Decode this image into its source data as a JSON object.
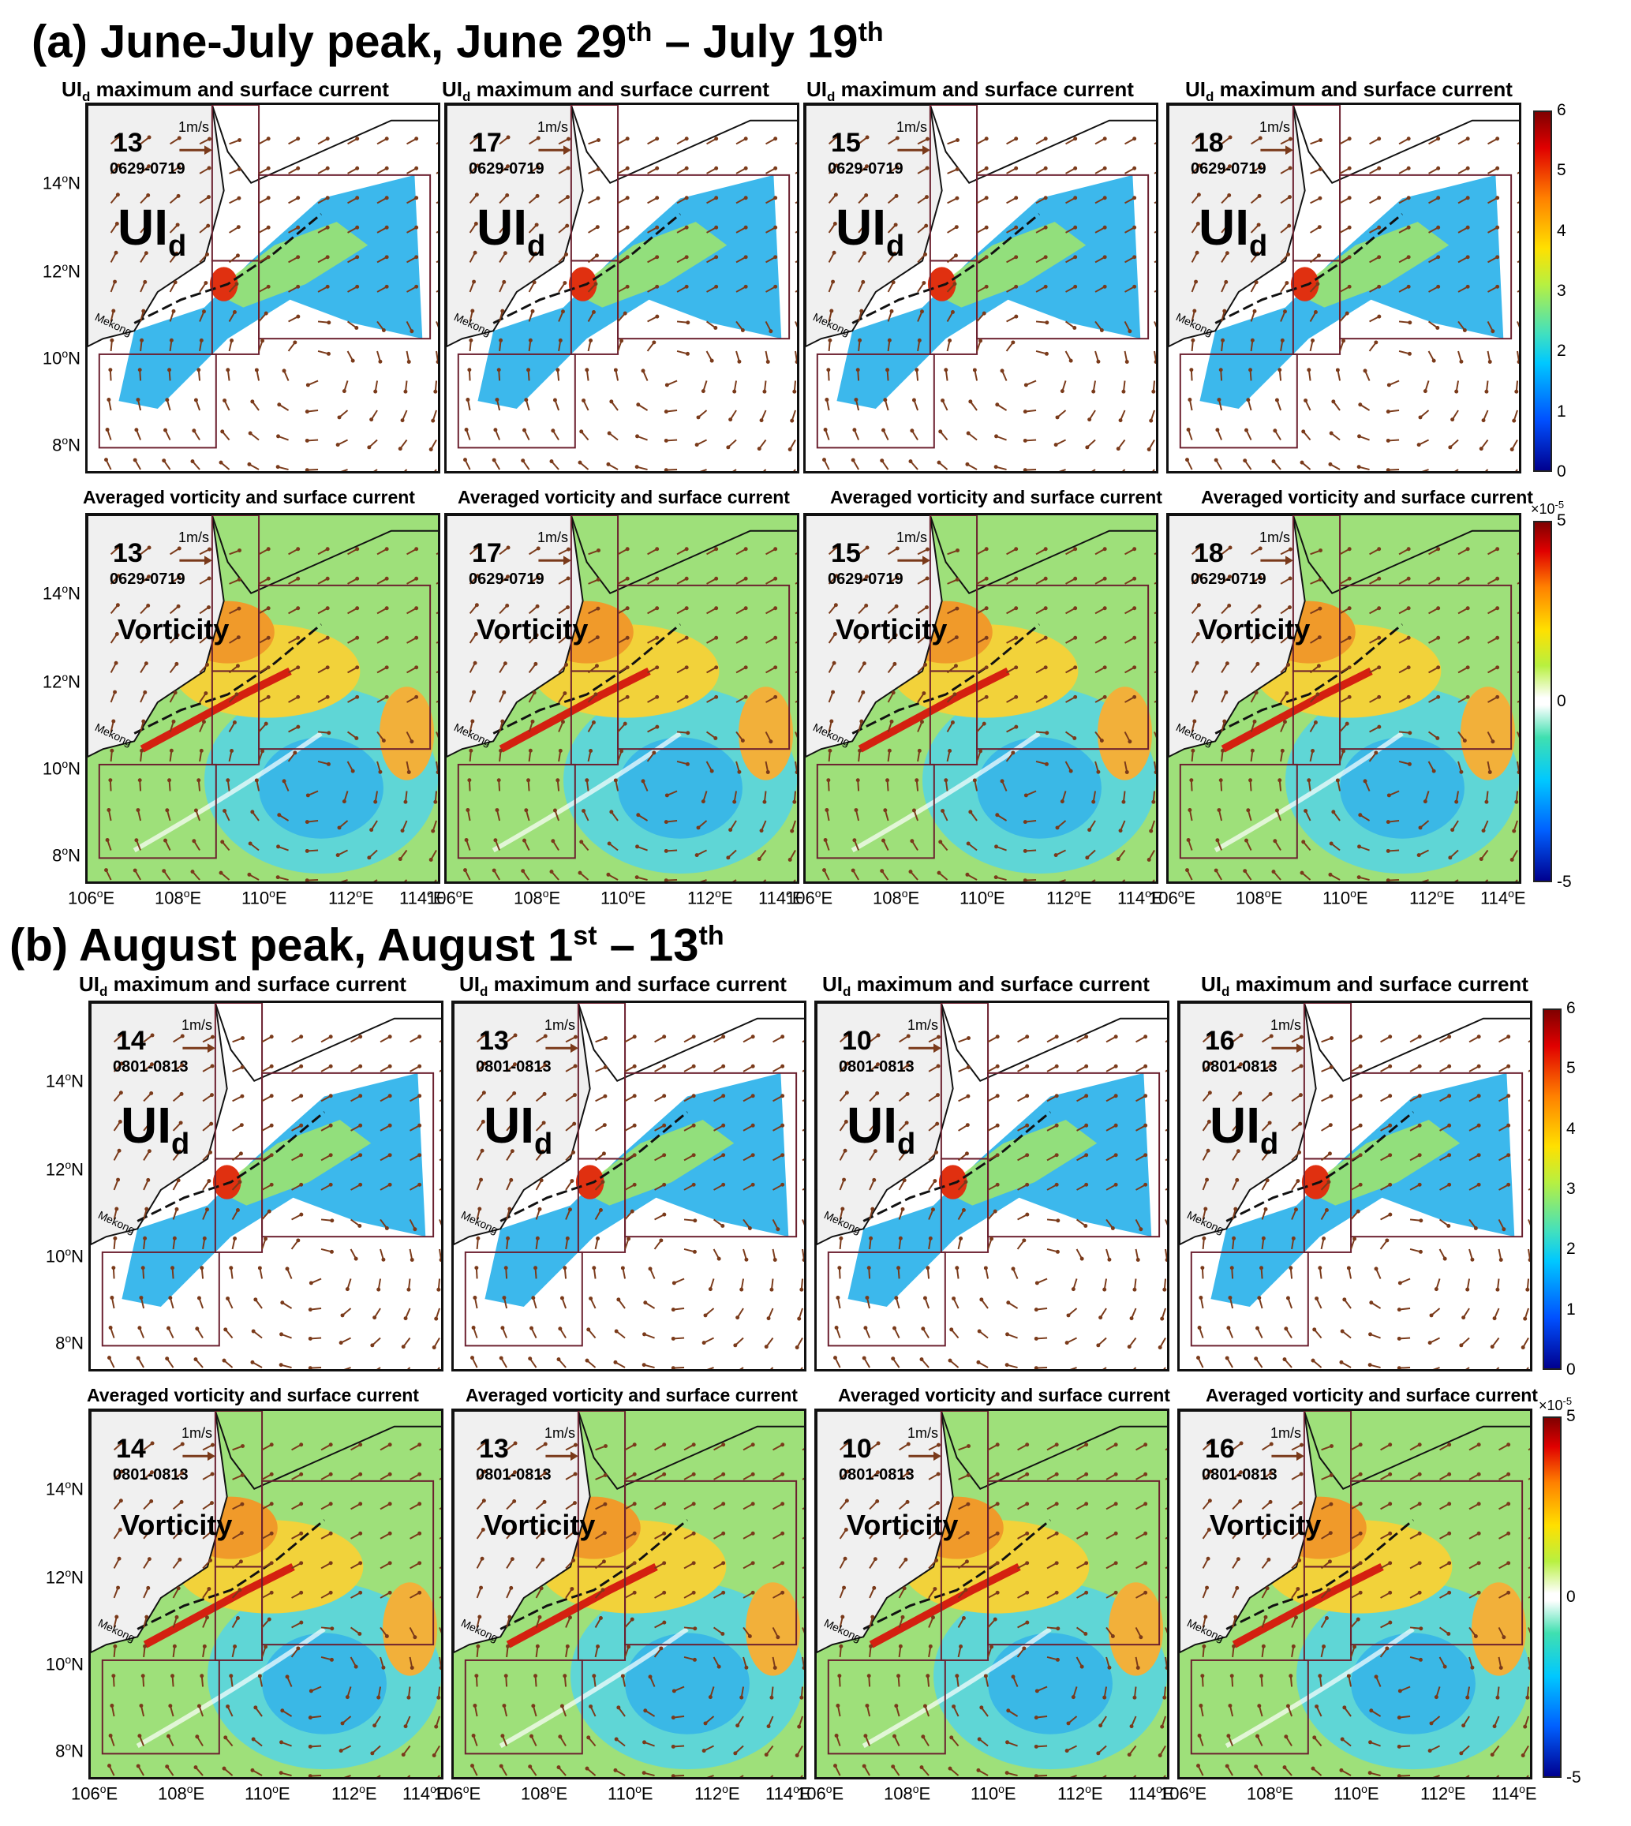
{
  "sections": [
    {
      "title_prefix": "(a) June-July peak, June 29",
      "title_sup1": "th",
      "title_mid": " – July 19",
      "title_sup2": "th",
      "uid_row_title_pre": "UI",
      "uid_row_title_sub": "d",
      "uid_row_title_post": " maximum and surface current",
      "vort_row_title": "Averaged vorticity and surface current",
      "date_code": "0629-0719",
      "panel_numbers": [
        "13",
        "17",
        "15",
        "18"
      ]
    },
    {
      "title_prefix": "(b) August peak, August 1",
      "title_sup1": "st",
      "title_mid": " – 13",
      "title_sup2": "th",
      "uid_row_title_pre": "UI",
      "uid_row_title_sub": "d",
      "uid_row_title_post": " maximum and surface current",
      "vort_row_title": "Averaged vorticity and surface current",
      "date_code": "0801-0813",
      "panel_numbers": [
        "14",
        "13",
        "10",
        "16"
      ]
    }
  ],
  "panel_labels": {
    "uid_main": "UI",
    "uid_sub": "d",
    "vorticity": "Vorticity"
  },
  "scale_arrow_label": "1m/s",
  "river_label": "Mekong",
  "lat_labels": [
    "14",
    "12",
    "10",
    "8"
  ],
  "lat_suffix": "N",
  "lon_labels": [
    "106",
    "108",
    "110",
    "112",
    "114"
  ],
  "lon_suffix": "E",
  "degree_sup": "o",
  "colorbar_uid": {
    "ticks": [
      "6",
      "5",
      "4",
      "3",
      "2",
      "1",
      "0"
    ],
    "colors": [
      "#00008f",
      "#0050ff",
      "#00c8ff",
      "#b8f040",
      "#ffe000",
      "#ff8000",
      "#e00000",
      "#800000"
    ]
  },
  "colorbar_vort": {
    "ticks": [
      "5",
      "0",
      "-5"
    ],
    "exponent_base": "×10",
    "exponent_power": "-5"
  },
  "colors": {
    "arrow": "#7a3a1a",
    "box": "#6b1f2e",
    "land": "#f0f0f0",
    "coast": "#111111"
  }
}
